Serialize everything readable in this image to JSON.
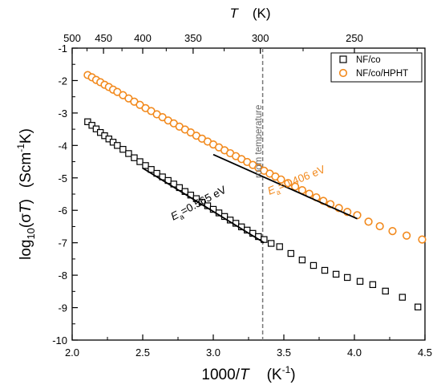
{
  "chart_data": {
    "type": "scatter",
    "xlabel": {
      "prefix": "1000/",
      "var": "T",
      "unit_pre": "(K",
      "unit_sup": "-1",
      "unit_post": ")"
    },
    "ylabel": {
      "pre": "log",
      "sub": "10",
      "open": "(σ",
      "var": "T",
      "close": ")",
      "unit_pre": "(Scm",
      "unit_sup": "-1",
      "unit_post": "K)"
    },
    "top_axis_label": {
      "var": "T",
      "unit": "(K)"
    },
    "xlim": [
      2.0,
      4.5
    ],
    "ylim": [
      -10,
      -1
    ],
    "x_ticks": [
      "2.0",
      "2.5",
      "3.0",
      "3.5",
      "4.0",
      "4.5"
    ],
    "y_ticks": [
      "-1",
      "-2",
      "-3",
      "-4",
      "-5",
      "-6",
      "-7",
      "-8",
      "-9",
      "-10"
    ],
    "top_ticks": [
      "500",
      "450",
      "400",
      "350",
      "300",
      "250"
    ],
    "legend_position": "top-right",
    "grid": false,
    "series": [
      {
        "name": "NF/co",
        "marker": "square",
        "color": "#000000",
        "x": [
          2.11,
          2.14,
          2.17,
          2.2,
          2.23,
          2.26,
          2.29,
          2.32,
          2.36,
          2.4,
          2.44,
          2.48,
          2.52,
          2.56,
          2.6,
          2.64,
          2.68,
          2.72,
          2.76,
          2.8,
          2.84,
          2.88,
          2.92,
          2.96,
          3.0,
          3.04,
          3.08,
          3.12,
          3.16,
          3.2,
          3.24,
          3.28,
          3.32,
          3.36,
          3.41,
          3.47,
          3.55,
          3.63,
          3.71,
          3.79,
          3.87,
          3.95,
          4.04,
          4.13,
          4.22,
          4.34,
          4.45
        ],
        "y": [
          -3.27,
          -3.38,
          -3.49,
          -3.6,
          -3.7,
          -3.8,
          -3.9,
          -4.0,
          -4.12,
          -4.25,
          -4.38,
          -4.5,
          -4.62,
          -4.74,
          -4.86,
          -4.97,
          -5.08,
          -5.19,
          -5.3,
          -5.42,
          -5.53,
          -5.64,
          -5.75,
          -5.86,
          -5.97,
          -6.08,
          -6.19,
          -6.3,
          -6.4,
          -6.51,
          -6.61,
          -6.71,
          -6.81,
          -6.9,
          -7.02,
          -7.12,
          -7.33,
          -7.53,
          -7.7,
          -7.85,
          -7.97,
          -8.07,
          -8.19,
          -8.29,
          -8.49,
          -8.68,
          -8.98
        ]
      },
      {
        "name": "NF/co/HPHT",
        "marker": "circle",
        "color": "#f28a1e",
        "x": [
          2.11,
          2.14,
          2.17,
          2.2,
          2.23,
          2.26,
          2.29,
          2.32,
          2.36,
          2.4,
          2.44,
          2.48,
          2.52,
          2.56,
          2.6,
          2.64,
          2.68,
          2.72,
          2.76,
          2.8,
          2.84,
          2.88,
          2.92,
          2.96,
          3.0,
          3.04,
          3.08,
          3.12,
          3.16,
          3.2,
          3.24,
          3.28,
          3.32,
          3.36,
          3.4,
          3.44,
          3.48,
          3.53,
          3.58,
          3.63,
          3.68,
          3.73,
          3.78,
          3.83,
          3.89,
          3.95,
          4.02,
          4.1,
          4.18,
          4.27,
          4.37,
          4.48
        ],
        "y": [
          -1.83,
          -1.9,
          -1.98,
          -2.05,
          -2.13,
          -2.2,
          -2.28,
          -2.35,
          -2.45,
          -2.55,
          -2.65,
          -2.75,
          -2.85,
          -2.94,
          -3.04,
          -3.13,
          -3.23,
          -3.32,
          -3.42,
          -3.51,
          -3.6,
          -3.7,
          -3.79,
          -3.88,
          -3.97,
          -4.06,
          -4.15,
          -4.24,
          -4.33,
          -4.42,
          -4.51,
          -4.6,
          -4.69,
          -4.78,
          -4.87,
          -4.96,
          -5.05,
          -5.16,
          -5.27,
          -5.38,
          -5.49,
          -5.6,
          -5.71,
          -5.81,
          -5.93,
          -6.05,
          -6.15,
          -6.35,
          -6.49,
          -6.64,
          -6.78,
          -6.9
        ]
      }
    ],
    "fits": [
      {
        "series": "NF/co",
        "x": [
          2.5,
          3.36
        ],
        "y": [
          -4.7,
          -7.0
        ],
        "color": "#000000"
      },
      {
        "series": "NF/co/HPHT",
        "x": [
          3.0,
          4.02
        ],
        "y": [
          -4.28,
          -6.26
        ],
        "color": "#000000"
      }
    ],
    "annotations": [
      {
        "text_pre": "E",
        "text_sub": "a",
        "text_post": "=0.406 eV",
        "color": "#f28a1e"
      },
      {
        "text_pre": "E",
        "text_sub": "a",
        "text_post": "=0.565 eV",
        "color": "#000000"
      }
    ],
    "reference_line": {
      "x": 3.35,
      "label": "room temperature",
      "color": "#777777"
    }
  }
}
